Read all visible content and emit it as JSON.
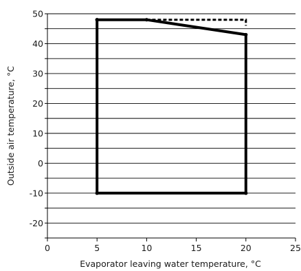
{
  "chart_data": {
    "type": "line",
    "title": "",
    "xlabel": "Evaporator leaving water temperature, °C",
    "ylabel": "Outside air temperature, °C",
    "xlim": [
      0,
      25
    ],
    "ylim": [
      -25,
      50
    ],
    "x_ticks": [
      0,
      5,
      10,
      15,
      20,
      25
    ],
    "y_tick_labels": [
      50,
      40,
      30,
      20,
      10,
      0,
      -10,
      -20
    ],
    "gridlines_y": [
      50,
      45,
      40,
      35,
      30,
      25,
      20,
      15,
      10,
      5,
      0,
      -5,
      -10,
      -15,
      -20,
      -25
    ],
    "grid": "horizontal",
    "legend": "none",
    "series": [
      {
        "style": "solid",
        "color": "#000000",
        "x": [
          5,
          10,
          20,
          20,
          5,
          5
        ],
        "y": [
          48,
          48,
          43,
          -10,
          -10,
          48
        ]
      },
      {
        "style": "dashed",
        "color": "#000000",
        "x": [
          10,
          20,
          20
        ],
        "y": [
          48,
          48,
          46
        ]
      }
    ]
  }
}
